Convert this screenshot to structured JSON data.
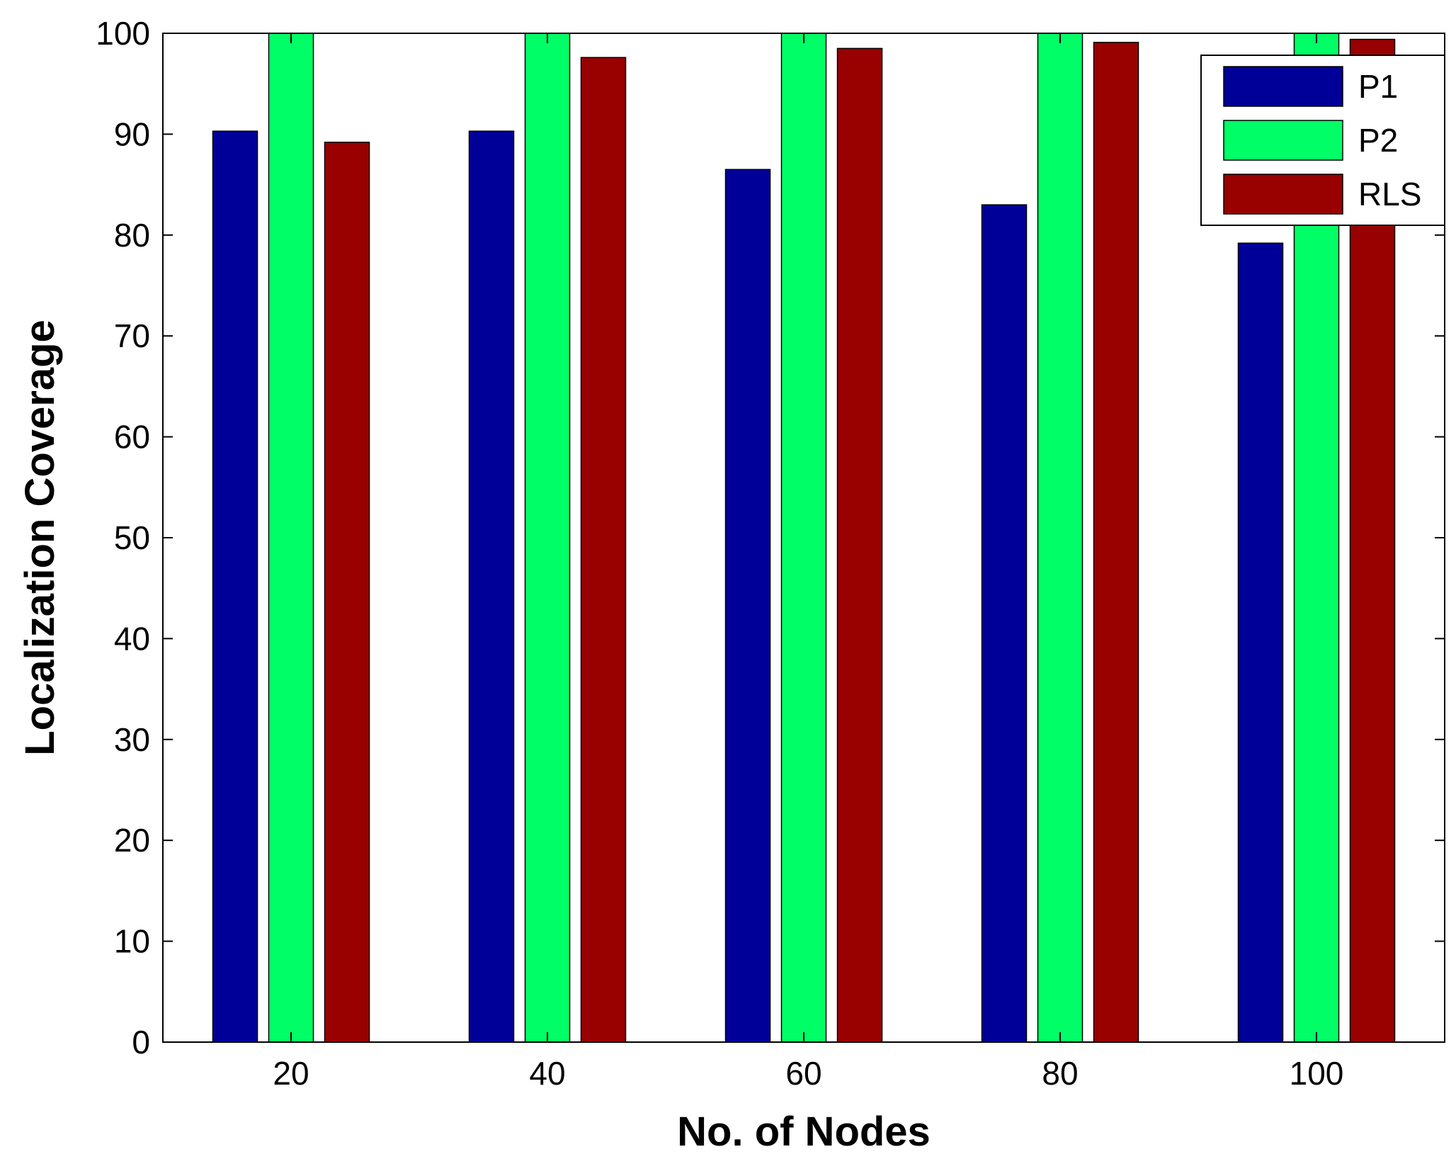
{
  "chart_data": {
    "type": "bar",
    "xlabel": "No. of Nodes",
    "ylabel": "Localization Coverage",
    "categories": [
      "20",
      "40",
      "60",
      "80",
      "100"
    ],
    "series": [
      {
        "name": "P1",
        "color": "#000099",
        "values": [
          90.3,
          90.3,
          86.5,
          83.0,
          79.2
        ]
      },
      {
        "name": "P2",
        "color": "#00FF66",
        "values": [
          100,
          100,
          100,
          100,
          100
        ]
      },
      {
        "name": "RLS",
        "color": "#990000",
        "values": [
          89.2,
          97.6,
          98.5,
          99.1,
          99.4
        ]
      }
    ],
    "ylim": [
      0,
      100
    ],
    "yticks": [
      0,
      10,
      20,
      30,
      40,
      50,
      60,
      70,
      80,
      90,
      100
    ],
    "legend": "top-right",
    "grid": false
  }
}
